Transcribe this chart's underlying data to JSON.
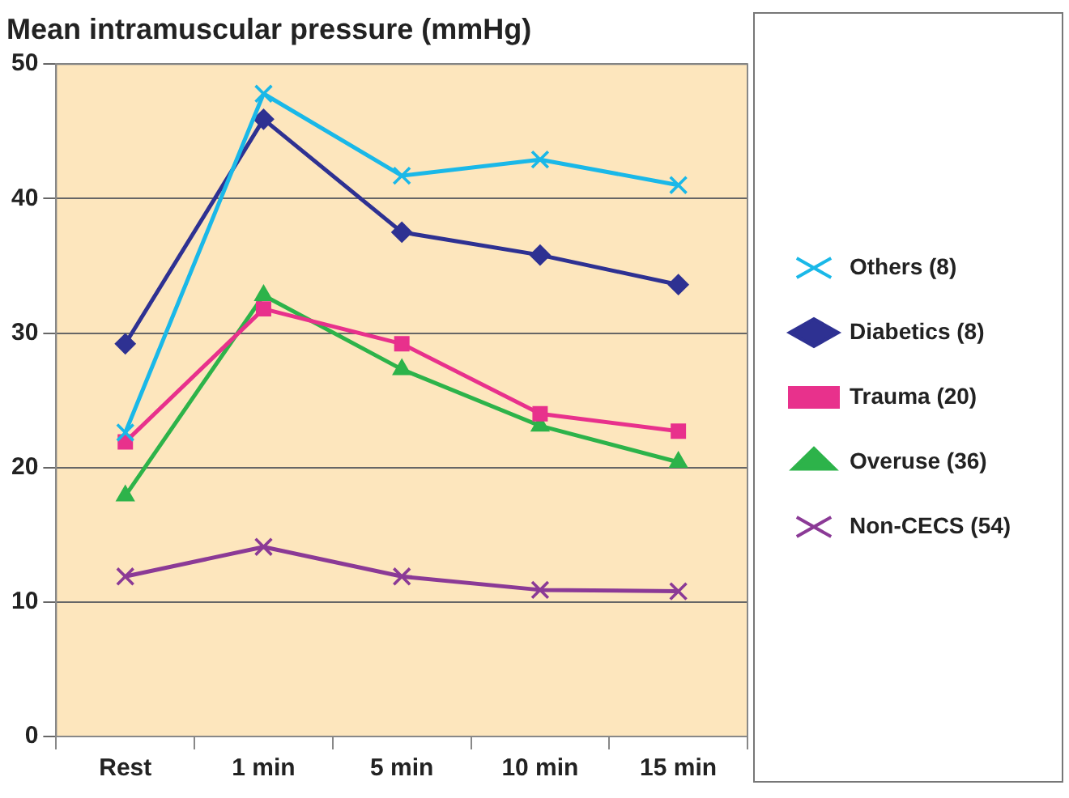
{
  "chart_data": {
    "type": "line",
    "title": "Mean intramuscular pressure (mmHg)",
    "categories": [
      "Rest",
      "1 min",
      "5 min",
      "10 min",
      "15 min"
    ],
    "series": [
      {
        "name": "Others (8)",
        "color": "#1ab8e8",
        "marker": "cross",
        "values": [
          22.6,
          47.8,
          41.7,
          42.9,
          41.0
        ]
      },
      {
        "name": "Diabetics (8)",
        "color": "#2e3192",
        "marker": "diamond",
        "values": [
          29.2,
          45.9,
          37.5,
          35.8,
          33.6
        ]
      },
      {
        "name": "Trauma (20)",
        "color": "#e8318c",
        "marker": "square",
        "values": [
          21.9,
          31.8,
          29.2,
          24.0,
          22.7
        ]
      },
      {
        "name": "Overuse (36)",
        "color": "#2db34a",
        "marker": "triangle",
        "values": [
          17.9,
          32.8,
          27.3,
          23.1,
          20.4
        ]
      },
      {
        "name": "Non-CECS (54)",
        "color": "#8b3a96",
        "marker": "cross",
        "values": [
          11.9,
          14.1,
          11.9,
          10.9,
          10.8
        ]
      }
    ],
    "ylim": [
      0,
      50
    ],
    "yticks": [
      0,
      10,
      20,
      30,
      40,
      50
    ],
    "grid": "y",
    "legend": "right",
    "line_style": "solid"
  }
}
